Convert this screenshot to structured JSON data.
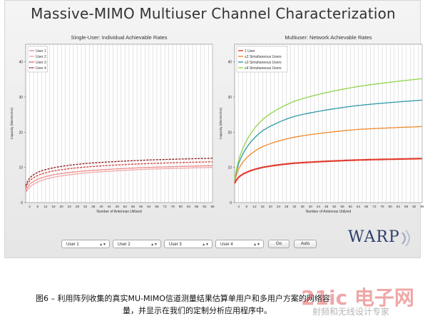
{
  "app": {
    "title": "Massive-MIMO Multiuser Channel Characterization",
    "controls": {
      "selects": [
        "User 1",
        "User 2",
        "User 3",
        "User 4"
      ],
      "go_label": "Go",
      "auto_label": "Auto"
    },
    "logo_text": "WARP"
  },
  "caption": {
    "line1": "图6 – 利用阵列收集的真实MU-MIMO信道测量结果估算单用户和多用户方案的网络容",
    "line2": "量，并显示在我们的定制分析应用程序中。"
  },
  "watermark": {
    "main": "21ic 电子网",
    "sub": "射频和无线设计专家"
  },
  "chart_data": [
    {
      "type": "line",
      "title": "Single-User: Individual Achievable Rates",
      "xlabel": "Number of Antennas Utilized",
      "ylabel": "Capacity (bits/sec/Hz)",
      "xlim": [
        2,
        96
      ],
      "ylim": [
        0,
        45
      ],
      "xticks": [
        4,
        8,
        12,
        16,
        20,
        24,
        28,
        32,
        36,
        40,
        44,
        48,
        52,
        56,
        60,
        64,
        68,
        72,
        76,
        80,
        84,
        88,
        92,
        96
      ],
      "yticks": [
        0,
        10,
        20,
        30,
        40
      ],
      "grid": true,
      "legend_position": "top-left",
      "x": [
        2,
        4,
        8,
        16,
        32,
        64,
        96
      ],
      "series": [
        {
          "name": "User 1",
          "color": "#f08a8a",
          "dash": "solid",
          "values": [
            3.3,
            5.2,
            6.6,
            7.9,
            9.0,
            10.0,
            10.5
          ]
        },
        {
          "name": "User 2",
          "color": "#f4a8a8",
          "dash": "solid",
          "values": [
            2.8,
            4.4,
            5.8,
            7.2,
            8.4,
            9.5,
            10.0
          ]
        },
        {
          "name": "User 3",
          "color": "#d43a3a",
          "dash": "dashed",
          "values": [
            4.2,
            6.2,
            7.7,
            9.0,
            10.1,
            11.1,
            11.6
          ]
        },
        {
          "name": "User 4",
          "color": "#8a1a1a",
          "dash": "dashed",
          "values": [
            4.8,
            7.0,
            8.6,
            9.9,
            11.1,
            12.1,
            12.6
          ]
        }
      ]
    },
    {
      "type": "line",
      "title": "Multiuser: Network Achievable Rates",
      "xlabel": "Number of Antennas Utilized",
      "ylabel": "Capacity (bits/sec/Hz)",
      "xlim": [
        2,
        96
      ],
      "ylim": [
        0,
        45
      ],
      "xticks": [
        4,
        8,
        12,
        16,
        20,
        24,
        28,
        32,
        36,
        40,
        44,
        48,
        52,
        56,
        60,
        64,
        68,
        72,
        76,
        80,
        84,
        88,
        92,
        96
      ],
      "yticks": [
        0,
        10,
        20,
        30,
        40
      ],
      "grid": true,
      "legend_position": "top-left",
      "x": [
        2,
        4,
        8,
        16,
        32,
        64,
        96
      ],
      "series": [
        {
          "name": "1 User",
          "color": "#e23b2e",
          "dash": "solid",
          "values": [
            5.5,
            7.2,
            8.6,
            10.0,
            11.2,
            12.1,
            12.5
          ]
        },
        {
          "name": "≤2 Simultaneous Users",
          "color": "#f0882a",
          "dash": "solid",
          "values": [
            6.0,
            9.5,
            12.7,
            15.9,
            18.6,
            20.8,
            21.6
          ]
        },
        {
          "name": "≤3 Simultaneous Users",
          "color": "#2e9aa8",
          "dash": "solid",
          "values": [
            6.3,
            11.0,
            15.6,
            20.4,
            24.5,
            27.6,
            29.1
          ]
        },
        {
          "name": "≤4 Simultaneous Users",
          "color": "#8fd64a",
          "dash": "solid",
          "values": [
            6.5,
            12.0,
            17.6,
            23.6,
            28.8,
            33.0,
            35.2
          ]
        }
      ]
    }
  ]
}
